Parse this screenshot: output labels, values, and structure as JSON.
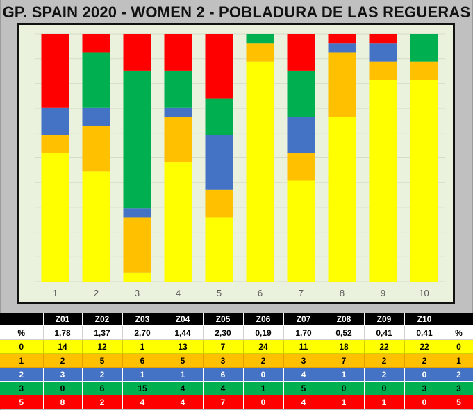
{
  "title": "GP. SPAIN 2020 - WOMEN 2 - POBLADURA DE LAS REGUERAS",
  "colors": {
    "s0": "#ffff00",
    "s1": "#ffc000",
    "s2": "#4472c4",
    "s3": "#00b050",
    "s5": "#ff0000",
    "plot_bg": "#eaf1dd",
    "gridline": "#d5dcc8"
  },
  "chart_data": {
    "type": "bar",
    "stacked": true,
    "normalized_percent": true,
    "categories": [
      "1",
      "2",
      "3",
      "4",
      "5",
      "6",
      "7",
      "8",
      "9",
      "10"
    ],
    "series": [
      {
        "name": "0",
        "values": [
          14,
          12,
          1,
          13,
          7,
          24,
          11,
          18,
          22,
          22
        ]
      },
      {
        "name": "1",
        "values": [
          2,
          5,
          6,
          5,
          3,
          2,
          3,
          7,
          2,
          2
        ]
      },
      {
        "name": "2",
        "values": [
          3,
          2,
          1,
          1,
          6,
          0,
          4,
          1,
          2,
          0
        ]
      },
      {
        "name": "3",
        "values": [
          0,
          6,
          15,
          4,
          4,
          1,
          5,
          0,
          0,
          3
        ]
      },
      {
        "name": "5",
        "values": [
          8,
          2,
          4,
          4,
          7,
          0,
          4,
          1,
          1,
          0
        ]
      }
    ],
    "ylim": [
      0,
      100
    ],
    "grid": true,
    "legend": "none"
  },
  "table": {
    "header": [
      "",
      "Z01",
      "Z02",
      "Z03",
      "Z04",
      "Z05",
      "Z06",
      "Z07",
      "Z08",
      "Z09",
      "Z10",
      ""
    ],
    "rows": [
      [
        "%",
        "1,78",
        "1,37",
        "2,70",
        "1,44",
        "2,30",
        "0,19",
        "1,70",
        "0,52",
        "0,41",
        "0,41",
        "%"
      ],
      [
        "0",
        "14",
        "12",
        "1",
        "13",
        "7",
        "24",
        "11",
        "18",
        "22",
        "22",
        "0"
      ],
      [
        "1",
        "2",
        "5",
        "6",
        "5",
        "3",
        "2",
        "3",
        "7",
        "2",
        "2",
        "1"
      ],
      [
        "2",
        "3",
        "2",
        "1",
        "1",
        "6",
        "0",
        "4",
        "1",
        "2",
        "0",
        "2"
      ],
      [
        "3",
        "0",
        "6",
        "15",
        "4",
        "4",
        "1",
        "5",
        "0",
        "0",
        "3",
        "3"
      ],
      [
        "5",
        "8",
        "2",
        "4",
        "4",
        "7",
        "0",
        "4",
        "1",
        "1",
        "0",
        "5"
      ]
    ]
  }
}
